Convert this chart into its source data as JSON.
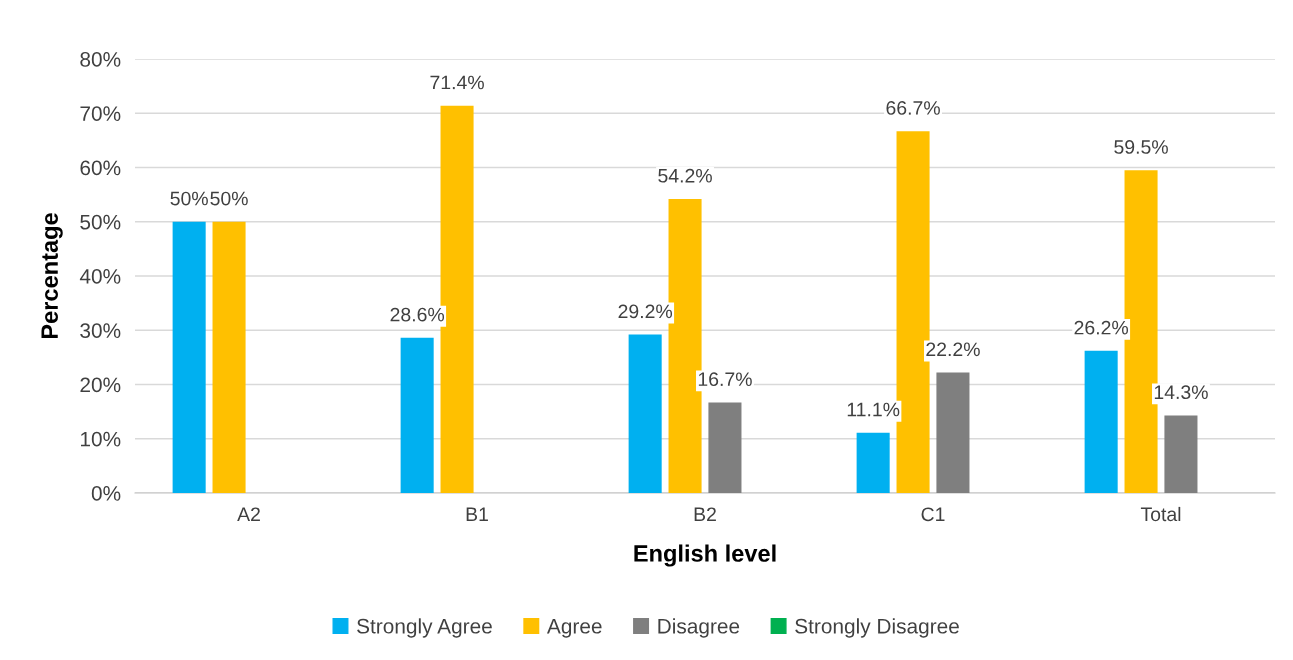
{
  "chart_data": {
    "type": "bar",
    "xlabel": "English level",
    "ylabel": "Percentage",
    "categories": [
      "A2",
      "B1",
      "B2",
      "C1",
      "Total"
    ],
    "series": [
      {
        "name": "Strongly Agree",
        "color": "#00b0f0",
        "values": [
          50,
          28.6,
          29.2,
          11.1,
          26.2
        ],
        "value_labels": [
          "50%",
          "28.6%",
          "29.2%",
          "11.1%",
          "26.2%"
        ]
      },
      {
        "name": "Agree",
        "color": "#ffc000",
        "values": [
          50,
          71.4,
          54.2,
          66.7,
          59.5
        ],
        "value_labels": [
          "50%",
          "71.4%",
          "54.2%",
          "66.7%",
          "59.5%"
        ]
      },
      {
        "name": "Disagree",
        "color": "#7f7f7f",
        "values": [
          null,
          null,
          16.7,
          22.2,
          14.3
        ],
        "value_labels": [
          null,
          null,
          "16.7%",
          "22.2%",
          "14.3%"
        ]
      },
      {
        "name": "Strongly Disagree",
        "color": "#00b050",
        "values": [
          null,
          null,
          null,
          null,
          null
        ]
      }
    ],
    "ylim": [
      0,
      80
    ],
    "yticks": [
      {
        "value": 0,
        "label": "0%"
      },
      {
        "value": 10,
        "label": "10%"
      },
      {
        "value": 20,
        "label": "20%"
      },
      {
        "value": 30,
        "label": "30%"
      },
      {
        "value": 40,
        "label": "40%"
      },
      {
        "value": 50,
        "label": "50%"
      },
      {
        "value": 60,
        "label": "60%"
      },
      {
        "value": 70,
        "label": "70%"
      },
      {
        "value": 80,
        "label": "80%"
      }
    ],
    "grid": "y",
    "legend": "bottom"
  }
}
